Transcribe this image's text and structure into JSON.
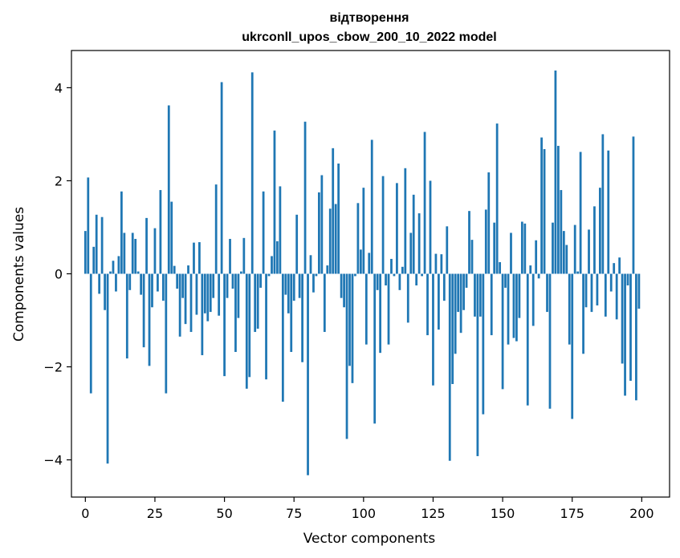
{
  "chart_data": {
    "type": "bar",
    "title_lines": [
      "відтворення",
      "ukrconll_upos_cbow_200_10_2022 model"
    ],
    "xlabel": "Vector components",
    "ylabel": "Components values",
    "xlim": [
      -5,
      210
    ],
    "ylim": [
      -4.8,
      4.8
    ],
    "xticks": [
      0,
      25,
      50,
      75,
      100,
      125,
      150,
      175,
      200
    ],
    "yticks": [
      -4,
      -2,
      0,
      2,
      4
    ],
    "ytick_labels": [
      "−4",
      "−2",
      "0",
      "2",
      "4"
    ],
    "bar_color": "#1f77b4",
    "values": [
      0.92,
      2.07,
      -2.57,
      0.58,
      1.27,
      -0.43,
      1.22,
      -0.78,
      -4.08,
      0.05,
      0.28,
      -0.38,
      0.38,
      1.77,
      0.88,
      -1.82,
      -0.35,
      0.88,
      0.75,
      0.05,
      -0.45,
      -1.58,
      1.2,
      -1.98,
      -0.72,
      0.98,
      -0.38,
      1.8,
      -0.58,
      -2.57,
      3.62,
      1.55,
      0.17,
      -0.32,
      -1.35,
      -0.52,
      -1.08,
      0.18,
      -1.25,
      0.67,
      -0.88,
      0.68,
      -1.75,
      -0.85,
      -1.02,
      -0.82,
      -0.52,
      1.92,
      -0.9,
      4.12,
      -2.2,
      -0.52,
      0.75,
      -0.32,
      -1.68,
      -0.95,
      0.05,
      0.77,
      -2.47,
      -2.22,
      4.33,
      -1.25,
      -1.18,
      -0.3,
      1.77,
      -2.27,
      -0.05,
      0.38,
      3.08,
      0.7,
      1.88,
      -2.75,
      -0.45,
      -0.85,
      -1.68,
      -0.58,
      1.27,
      -0.52,
      -1.9,
      3.27,
      -4.33,
      0.4,
      -0.4,
      -0.05,
      1.75,
      2.12,
      -1.25,
      0.18,
      1.4,
      2.7,
      1.5,
      2.37,
      -0.52,
      -0.72,
      -3.55,
      -1.98,
      -2.35,
      -0.05,
      1.52,
      0.52,
      1.85,
      -1.52,
      0.45,
      2.88,
      -3.22,
      -0.35,
      -1.7,
      2.1,
      -0.25,
      -1.52,
      0.32,
      -0.05,
      1.95,
      -0.35,
      0.15,
      2.27,
      -1.05,
      0.88,
      1.7,
      -0.25,
      1.3,
      -0.05,
      3.05,
      -1.32,
      2.0,
      -2.4,
      0.43,
      -1.2,
      0.42,
      -0.58,
      1.02,
      -4.02,
      -2.37,
      -1.72,
      -0.82,
      -1.27,
      -0.78,
      -0.3,
      1.35,
      0.73,
      -0.92,
      -3.92,
      -0.92,
      -3.02,
      1.38,
      2.18,
      -1.32,
      1.1,
      3.23,
      0.25,
      -2.48,
      -0.3,
      -1.52,
      0.88,
      -1.38,
      -1.45,
      -0.95,
      1.12,
      1.08,
      -2.83,
      0.18,
      -1.12,
      0.72,
      -0.1,
      2.93,
      2.68,
      -0.82,
      -2.9,
      1.1,
      4.37,
      2.75,
      1.8,
      0.92,
      0.62,
      -1.52,
      -3.12,
      1.05,
      0.05,
      2.62,
      -1.72,
      -0.72,
      0.95,
      -0.82,
      1.45,
      -0.68,
      1.85,
      3.0,
      -0.92,
      2.65,
      -0.38,
      0.23,
      -0.98,
      0.35,
      -1.93,
      -2.62,
      -0.25,
      -2.3,
      2.95,
      -2.72,
      -0.75
    ]
  }
}
